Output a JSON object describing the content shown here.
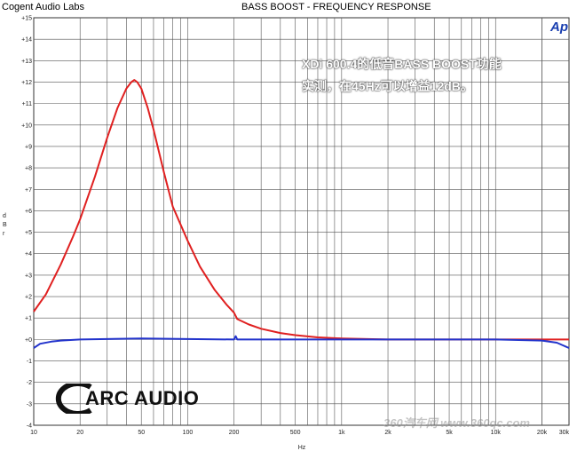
{
  "header": {
    "lab": "Cogent Audio Labs",
    "title": "BASS BOOST  -  FREQUENCY RESPONSE",
    "ap_logo": "Ap"
  },
  "annotation": {
    "line1": "XDi 600.4的低音BASS BOOST功能",
    "line2": "实测，在45Hz可以增益12dB。"
  },
  "logo": {
    "text": "ARC AUDIO"
  },
  "watermark": {
    "text": "360汽车网 www.360qc.com"
  },
  "chart_data": {
    "type": "line",
    "title": "BASS BOOST  -  FREQUENCY RESPONSE",
    "xlabel": "Hz",
    "ylabel": "d B r",
    "xscale": "log",
    "xlim": [
      10,
      30000
    ],
    "ylim": [
      -4,
      15
    ],
    "grid": true,
    "xtick_labels": [
      {
        "v": 10,
        "t": "10"
      },
      {
        "v": 20,
        "t": "20"
      },
      {
        "v": 50,
        "t": "50"
      },
      {
        "v": 100,
        "t": "100"
      },
      {
        "v": 200,
        "t": "200"
      },
      {
        "v": 500,
        "t": "500"
      },
      {
        "v": 1000,
        "t": "1k"
      },
      {
        "v": 2000,
        "t": "2k"
      },
      {
        "v": 5000,
        "t": "5k"
      },
      {
        "v": 10000,
        "t": "10k"
      },
      {
        "v": 20000,
        "t": "20k"
      },
      {
        "v": 30000,
        "t": "30k"
      }
    ],
    "ytick_labels": [
      "+15",
      "+14",
      "+13",
      "+12",
      "+11",
      "+10",
      "+9",
      "+8",
      "+7",
      "+6",
      "+5",
      "+4",
      "+3",
      "+2",
      "+1",
      "+0",
      "-1",
      "-2",
      "-3",
      "-4"
    ],
    "series": [
      {
        "color": "#e02020",
        "x": [
          10,
          12,
          15,
          18,
          20,
          25,
          30,
          35,
          40,
          43,
          45,
          47,
          50,
          55,
          60,
          70,
          80,
          100,
          120,
          150,
          180,
          200,
          210,
          250,
          300,
          400,
          500,
          700,
          1000,
          2000,
          5000,
          10000,
          20000,
          30000
        ],
        "y": [
          1.3,
          2.1,
          3.5,
          4.8,
          5.6,
          7.6,
          9.4,
          10.8,
          11.7,
          12.0,
          12.1,
          12.0,
          11.7,
          10.8,
          9.8,
          7.8,
          6.2,
          4.6,
          3.4,
          2.3,
          1.6,
          1.25,
          0.95,
          0.7,
          0.5,
          0.3,
          0.2,
          0.1,
          0.05,
          0.0,
          0.0,
          0.0,
          0.0,
          0.0
        ]
      },
      {
        "color": "#2233cc",
        "x": [
          10,
          11,
          13,
          15,
          20,
          30,
          50,
          100,
          200,
          205,
          210,
          220,
          500,
          1000,
          5000,
          10000,
          20000,
          25000,
          30000
        ],
        "y": [
          -0.4,
          -0.2,
          -0.1,
          -0.05,
          0.0,
          0.02,
          0.05,
          0.02,
          0.0,
          0.15,
          0.0,
          0.0,
          0.0,
          0.0,
          0.0,
          0.0,
          -0.05,
          -0.15,
          -0.4
        ]
      }
    ]
  }
}
